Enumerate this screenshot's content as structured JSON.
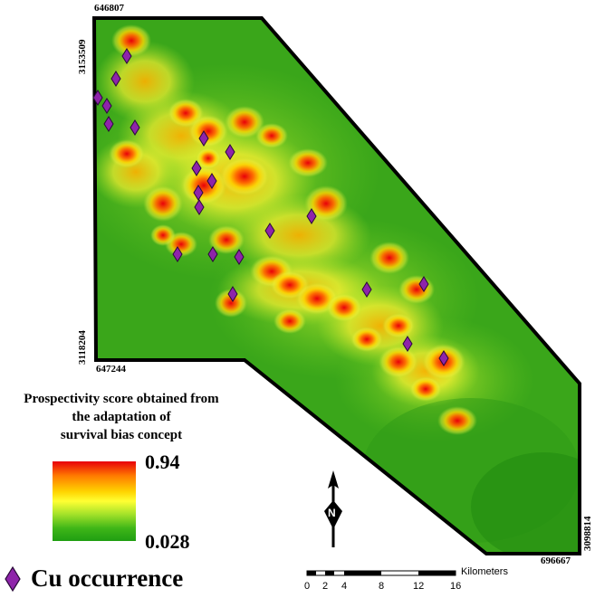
{
  "map": {
    "coordinates": {
      "top_x": "646807",
      "left_top_y": "3153509",
      "left_bottom_y": "3118204",
      "bottom_x": "647244",
      "right_y": "3098814",
      "right_x": "696667"
    }
  },
  "legend": {
    "title_line1": "Prospectivity score obtained from",
    "title_line2": "the adaptation of",
    "title_line3": "survival bias concept",
    "max_value": "0.94",
    "min_value": "0.028",
    "gradient_colors": [
      "#e8000a",
      "#ff7a00",
      "#ffd400",
      "#ffff33",
      "#a6e32a",
      "#3fb618",
      "#1f9e12"
    ],
    "cu_label": "Cu occurrence",
    "cu_color": "#8e24aa"
  },
  "scale_bar": {
    "unit": "Kilometers",
    "ticks": [
      "0",
      "2",
      "4",
      "8",
      "12",
      "16"
    ]
  },
  "north_arrow": {
    "label": "N"
  }
}
